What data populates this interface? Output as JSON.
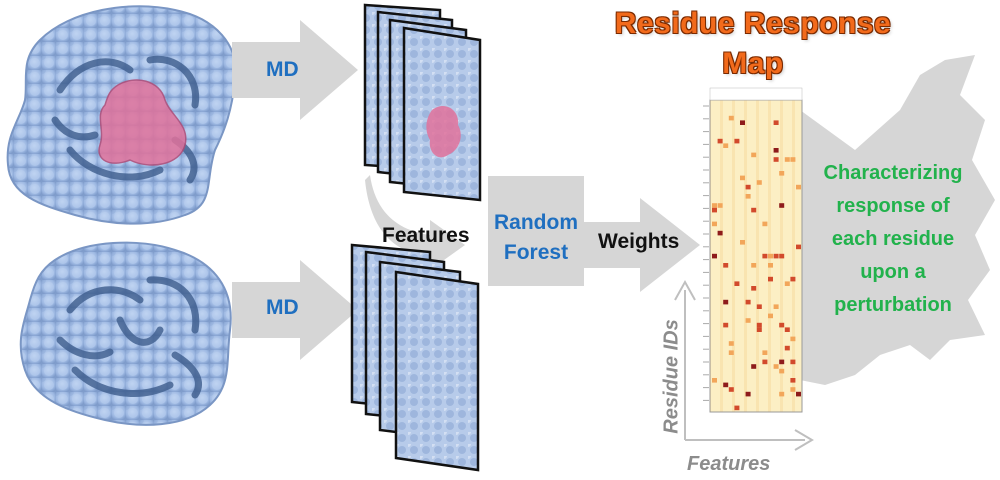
{
  "labels": {
    "md_top": "MD",
    "md_bottom": "MD",
    "features": "Features",
    "random_forest_line1": "Random",
    "random_forest_line2": "Forest",
    "weights": "Weights",
    "title_line1": "Residue Response",
    "title_line2": "Map",
    "result_line1": "Characterizing",
    "result_line2": "response of",
    "result_line3": "each residue",
    "result_line4": "upon a",
    "result_line5": "perturbation",
    "y_axis": "Residue IDs",
    "x_axis": "Features"
  },
  "colors": {
    "protein_surface": "#a9c2e8",
    "protein_cartoon": "#3d5c8c",
    "binding_site": "#e0729b",
    "arrow_gray": "#d6d6d6",
    "heatmap_bg": "#fcefc4",
    "heatmap_hot": "#c0392b"
  }
}
